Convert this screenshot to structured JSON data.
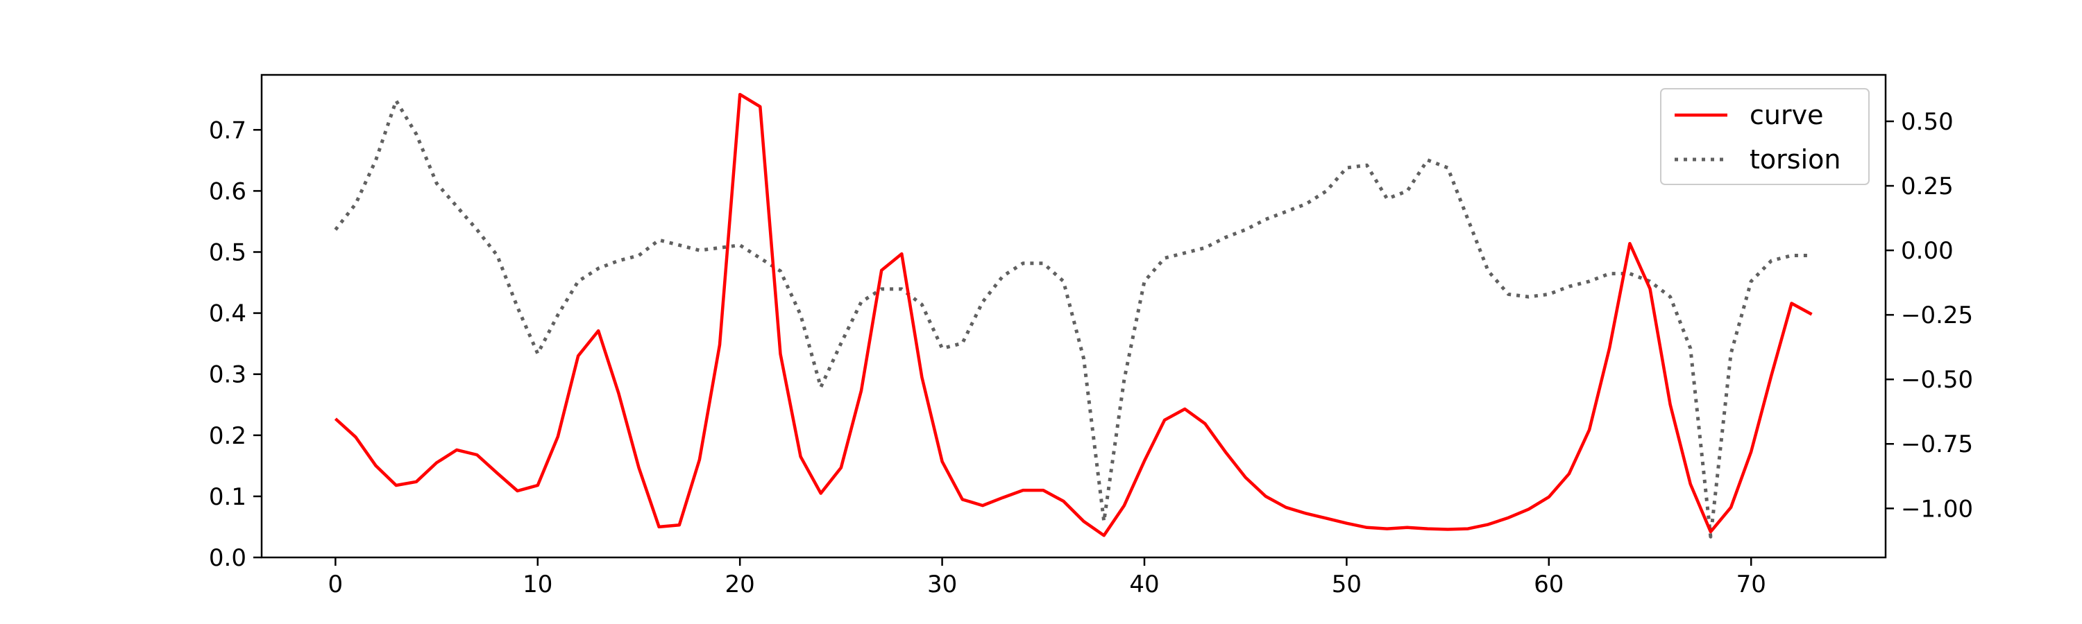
{
  "chart_data": {
    "type": "line",
    "title": "",
    "xlabel": "",
    "ylabel": "",
    "y2label": "",
    "xlim": [
      -3.65,
      76.65
    ],
    "ylim": [
      0,
      0.79
    ],
    "y2lim": [
      -1.19,
      0.68
    ],
    "x_ticks": [
      0,
      10,
      20,
      30,
      40,
      50,
      60,
      70
    ],
    "y_ticks": [
      0.0,
      0.1,
      0.2,
      0.3,
      0.4,
      0.5,
      0.6,
      0.7
    ],
    "y2_ticks": [
      0.5,
      0.25,
      0.0,
      -0.25,
      -0.5,
      -0.75,
      -1.0
    ],
    "x_tick_labels": [
      "0",
      "10",
      "20",
      "30",
      "40",
      "50",
      "60",
      "70"
    ],
    "y_tick_labels": [
      "0.0",
      "0.1",
      "0.2",
      "0.3",
      "0.4",
      "0.5",
      "0.6",
      "0.7"
    ],
    "y2_tick_labels": [
      "0.50",
      "0.25",
      "0.00",
      "−0.25",
      "−0.50",
      "−0.75",
      "−1.00"
    ],
    "grid": false,
    "legend_position": "top-right",
    "x": [
      0,
      1,
      2,
      3,
      4,
      5,
      6,
      7,
      8,
      9,
      10,
      11,
      12,
      13,
      14,
      15,
      16,
      17,
      18,
      19,
      20,
      21,
      22,
      23,
      24,
      25,
      26,
      27,
      28,
      29,
      30,
      31,
      32,
      33,
      34,
      35,
      36,
      37,
      38,
      39,
      40,
      41,
      42,
      43,
      44,
      45,
      46,
      47,
      48,
      49,
      50,
      51,
      52,
      53,
      54,
      55,
      56,
      57,
      58,
      59,
      60,
      61,
      62,
      63,
      64,
      65,
      66,
      67,
      68,
      69,
      70,
      71,
      72,
      73
    ],
    "series": [
      {
        "name": "curve",
        "axis": "left",
        "color": "#ff0000",
        "style": "solid",
        "values": [
          0.227,
          0.197,
          0.15,
          0.118,
          0.124,
          0.155,
          0.176,
          0.168,
          0.138,
          0.109,
          0.118,
          0.198,
          0.33,
          0.371,
          0.269,
          0.147,
          0.05,
          0.053,
          0.16,
          0.348,
          0.758,
          0.738,
          0.333,
          0.165,
          0.105,
          0.147,
          0.273,
          0.47,
          0.497,
          0.295,
          0.157,
          0.095,
          0.085,
          0.098,
          0.11,
          0.11,
          0.092,
          0.059,
          0.036,
          0.085,
          0.158,
          0.225,
          0.243,
          0.219,
          0.173,
          0.131,
          0.1,
          0.082,
          0.072,
          0.064,
          0.056,
          0.049,
          0.047,
          0.049,
          0.047,
          0.046,
          0.047,
          0.054,
          0.065,
          0.079,
          0.099,
          0.137,
          0.209,
          0.343,
          0.514,
          0.44,
          0.25,
          0.12,
          0.042,
          0.082,
          0.173,
          0.298,
          0.416,
          0.398
        ]
      },
      {
        "name": "torsion",
        "axis": "right",
        "color": "#606060",
        "style": "dotted",
        "values": [
          0.08,
          0.18,
          0.35,
          0.58,
          0.45,
          0.26,
          0.17,
          0.08,
          -0.02,
          -0.22,
          -0.4,
          -0.25,
          -0.12,
          -0.07,
          -0.04,
          -0.02,
          0.04,
          0.02,
          0.0,
          0.01,
          0.02,
          -0.03,
          -0.08,
          -0.25,
          -0.53,
          -0.36,
          -0.2,
          -0.15,
          -0.15,
          -0.21,
          -0.38,
          -0.36,
          -0.2,
          -0.1,
          -0.05,
          -0.05,
          -0.12,
          -0.42,
          -1.05,
          -0.5,
          -0.12,
          -0.03,
          -0.01,
          0.01,
          0.05,
          0.08,
          0.12,
          0.15,
          0.18,
          0.23,
          0.32,
          0.33,
          0.2,
          0.23,
          0.35,
          0.32,
          0.12,
          -0.08,
          -0.17,
          -0.18,
          -0.17,
          -0.14,
          -0.12,
          -0.09,
          -0.09,
          -0.12,
          -0.18,
          -0.38,
          -1.11,
          -0.4,
          -0.12,
          -0.04,
          -0.02,
          -0.02
        ]
      }
    ]
  }
}
